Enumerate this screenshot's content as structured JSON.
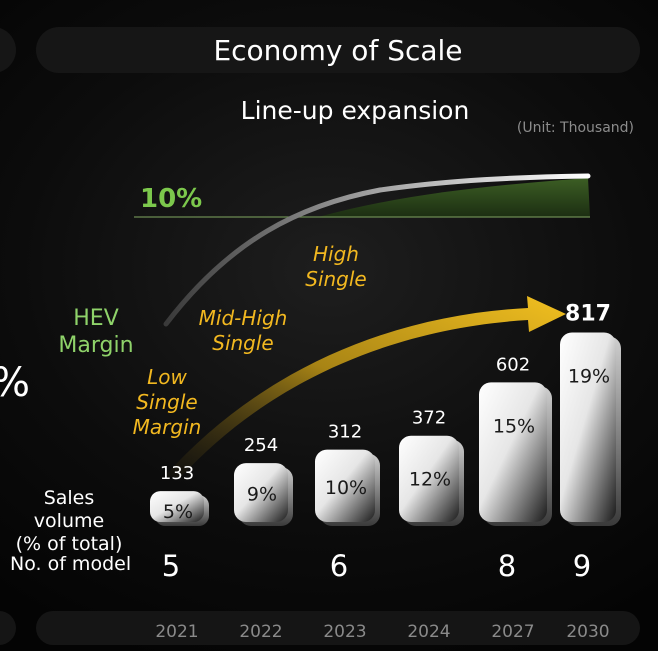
{
  "header": {
    "title": "Economy of Scale",
    "subtitle": "Line-up expansion",
    "unit": "(Unit: Thousand)"
  },
  "margin_curve": {
    "series_label_lines": [
      "HEV",
      "Margin"
    ],
    "target_label": "10%",
    "stages": [
      {
        "lines": [
          "Low",
          "Single",
          "Margin"
        ]
      },
      {
        "lines": [
          "Mid-High",
          "Single"
        ]
      },
      {
        "lines": [
          "High",
          "Single"
        ]
      }
    ]
  },
  "row_labels": {
    "sales_volume_lines": [
      "Sales volume",
      "(% of total)"
    ],
    "models": "No. of model"
  },
  "chart_data": {
    "type": "bar",
    "categories": [
      "2021",
      "2022",
      "2023",
      "2024",
      "2027",
      "2030"
    ],
    "sales_volume": [
      133,
      254,
      312,
      372,
      602,
      817
    ],
    "share_of_total": [
      "5%",
      "9%",
      "10%",
      "12%",
      "15%",
      "19%"
    ],
    "model_counts": [
      {
        "category": "2021",
        "value": "5"
      },
      {
        "category": "2023",
        "value": "6"
      },
      {
        "category": "2027",
        "value": "8"
      },
      {
        "category": "2030",
        "value": "9"
      }
    ],
    "ylim": [
      0,
      900
    ],
    "legend": "none",
    "grid": false
  },
  "colors": {
    "margin_line_start": "#3a3a3a",
    "margin_line_end": "#ffffff",
    "margin_fill": "#2f4a1e",
    "target_line": "#6b8a52",
    "arrow": "#e0ae1c",
    "hev_label": "#8fd36a",
    "stage_label": "#f2b820",
    "year_label": "#8a8a8a"
  },
  "left_glyph": "%"
}
